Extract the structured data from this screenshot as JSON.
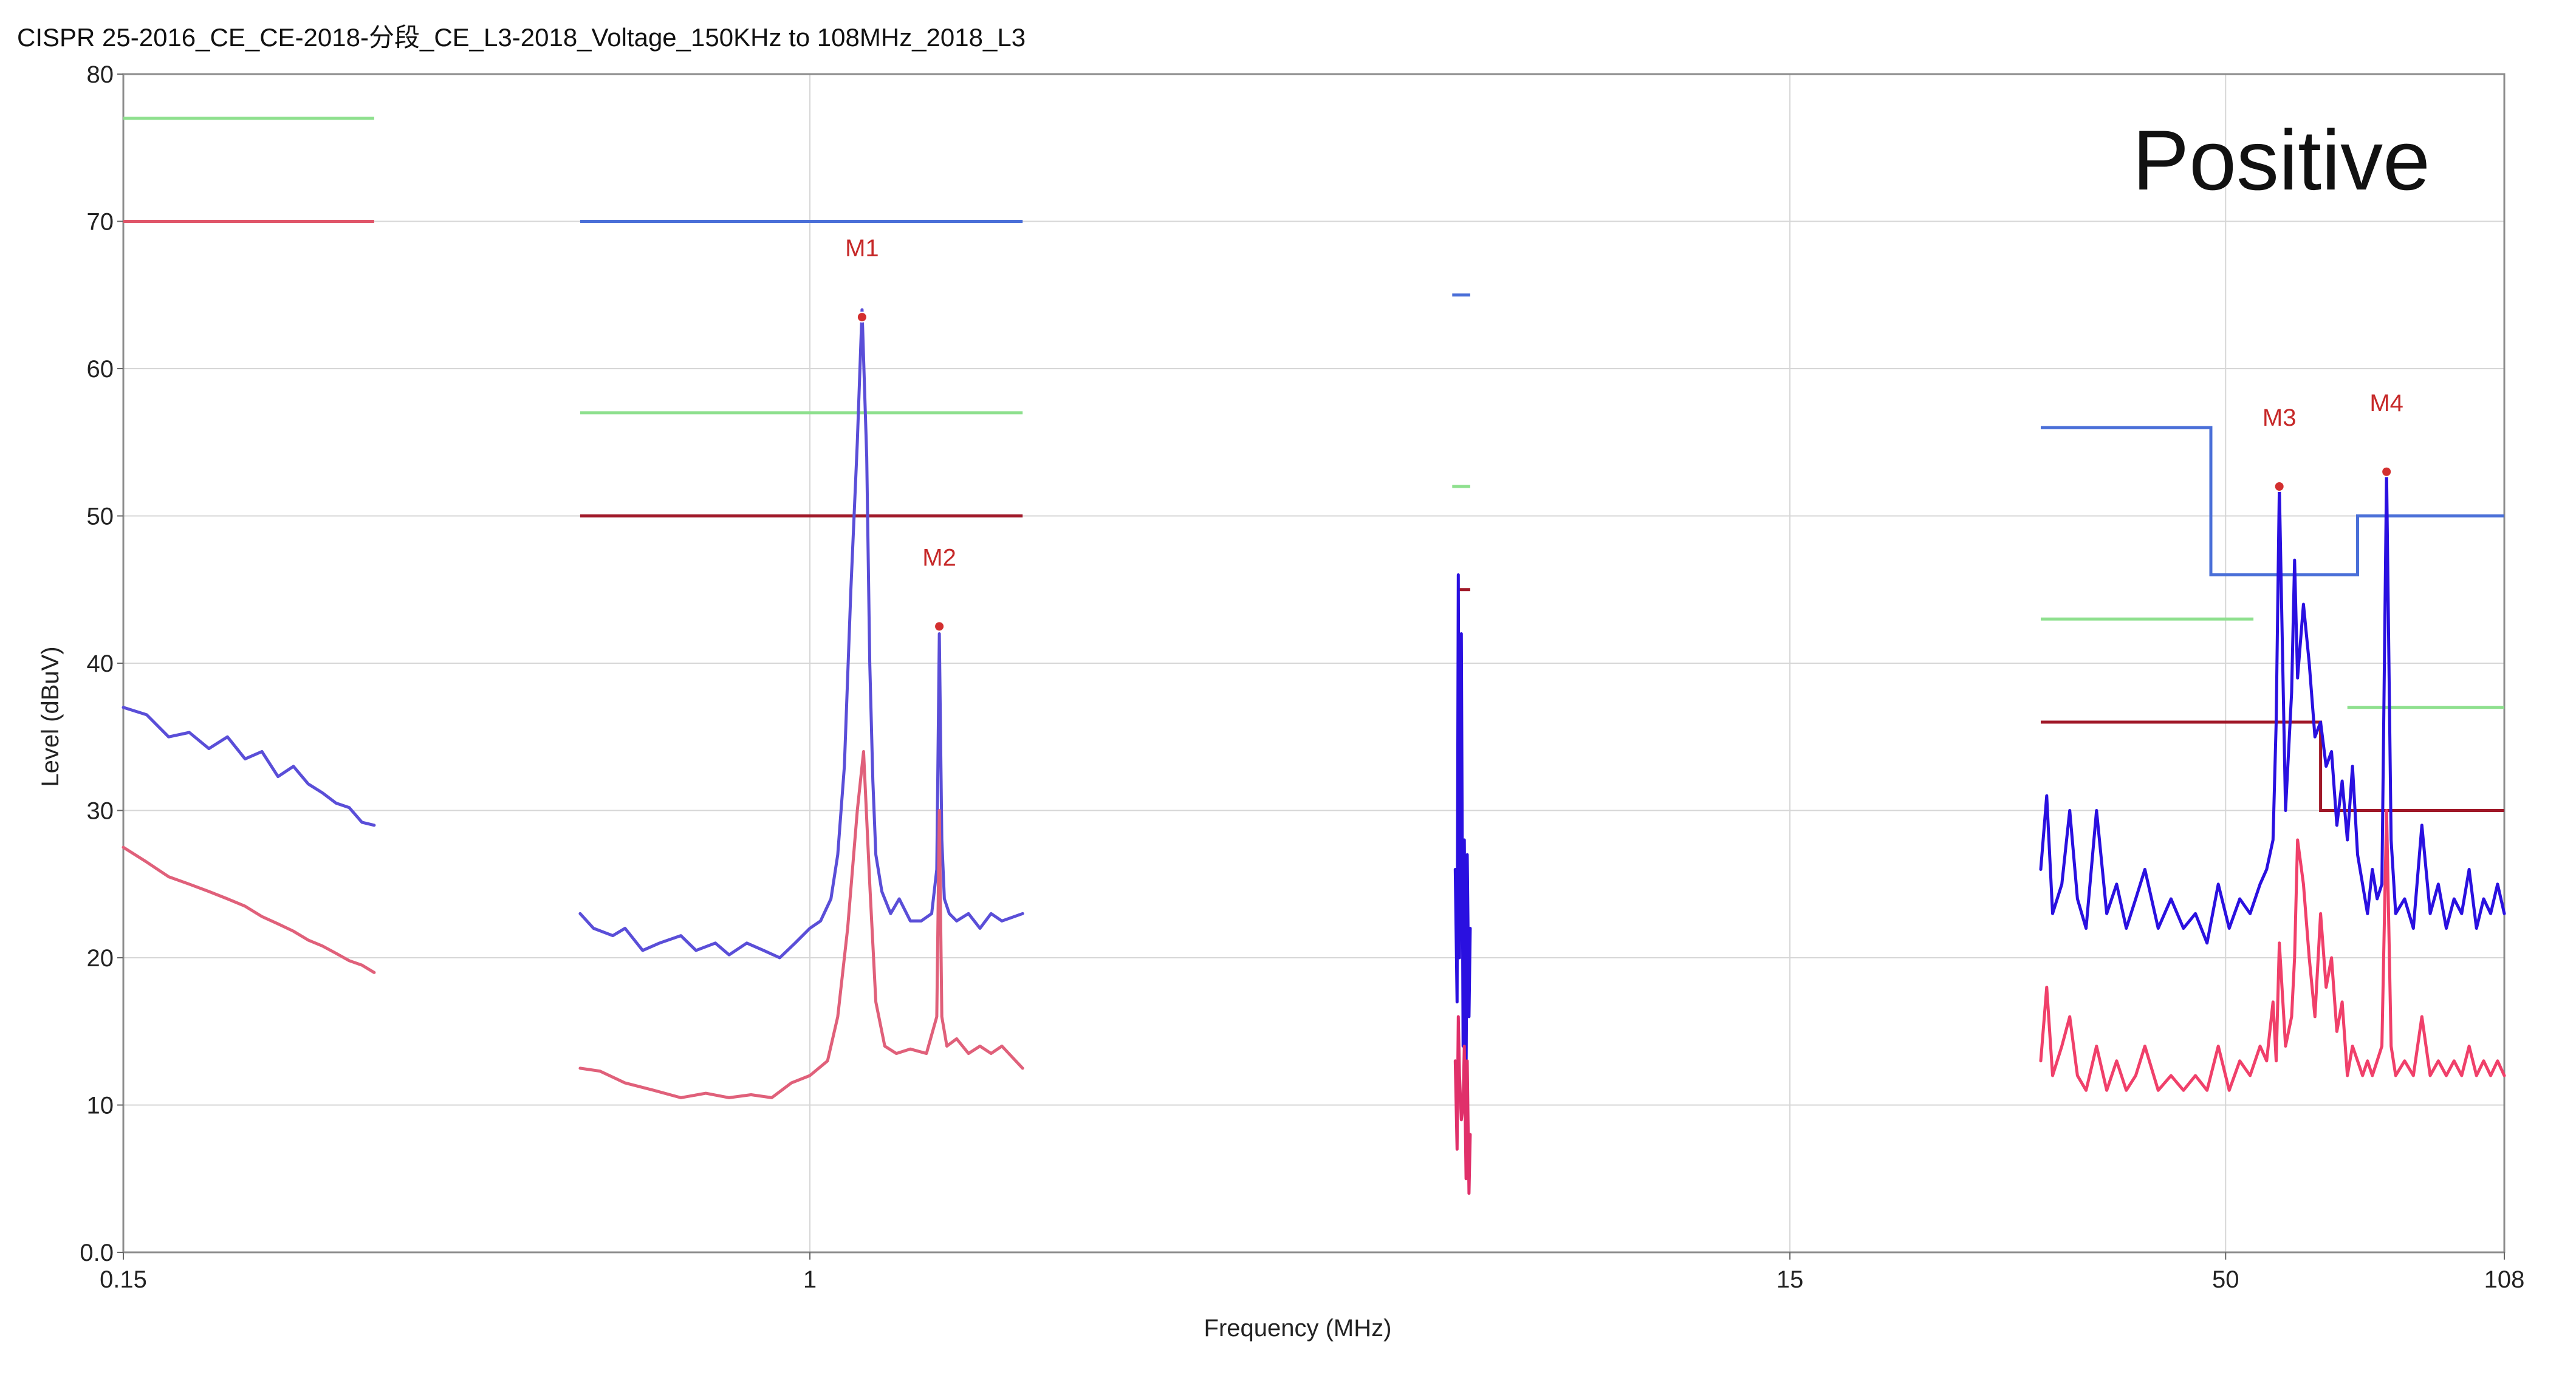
{
  "chart_data": {
    "type": "line",
    "title": "CISPR 25-2016_CE_CE-2018-分段_CE_L3-2018_Voltage_150KHz to 108MHz_2018_L3",
    "xlabel": "Frequency (MHz)",
    "ylabel": "Level (dBuV)",
    "annotation": "Positive",
    "x_scale": "log",
    "xlim": [
      0.15,
      108
    ],
    "ylim": [
      0,
      80
    ],
    "grid": true,
    "x_ticks": [
      {
        "value": 0.15,
        "label": "0.15"
      },
      {
        "value": 1,
        "label": "1"
      },
      {
        "value": 15,
        "label": "15"
      },
      {
        "value": 50,
        "label": "50"
      },
      {
        "value": 108,
        "label": "108"
      }
    ],
    "y_ticks": [
      {
        "value": 0,
        "label": "0.0"
      },
      {
        "value": 10,
        "label": "10"
      },
      {
        "value": 20,
        "label": "20"
      },
      {
        "value": 30,
        "label": "30"
      },
      {
        "value": 40,
        "label": "40"
      },
      {
        "value": 50,
        "label": "50"
      },
      {
        "value": 60,
        "label": "60"
      },
      {
        "value": 70,
        "label": "70"
      },
      {
        "value": 80,
        "label": "80"
      }
    ],
    "limit_lines": [
      {
        "color": "#4a6fd8",
        "x": [
          0.53,
          1.8
        ],
        "y": [
          70,
          70
        ]
      },
      {
        "color": "#4a6fd8",
        "x": [
          5.9,
          6.2
        ],
        "y": [
          65,
          65
        ]
      },
      {
        "color": "#4a6fd8",
        "x": [
          30,
          48,
          48,
          72,
          72,
          108
        ],
        "y": [
          56,
          56,
          46,
          46,
          50,
          50
        ]
      },
      {
        "color": "#8ee08e",
        "x": [
          0.15,
          0.3
        ],
        "y": [
          77,
          77
        ]
      },
      {
        "color": "#8ee08e",
        "x": [
          0.53,
          1.8
        ],
        "y": [
          57,
          57
        ]
      },
      {
        "color": "#8ee08e",
        "x": [
          5.9,
          6.2
        ],
        "y": [
          52,
          52
        ]
      },
      {
        "color": "#8ee08e",
        "x": [
          30,
          54
        ],
        "y": [
          43,
          43
        ]
      },
      {
        "color": "#8ee08e",
        "x": [
          70,
          108
        ],
        "y": [
          37,
          37
        ]
      },
      {
        "color": "#e05569",
        "x": [
          0.15,
          0.3
        ],
        "y": [
          70,
          70
        ]
      },
      {
        "color": "#a01828",
        "x": [
          0.53,
          1.8
        ],
        "y": [
          50,
          50
        ]
      },
      {
        "color": "#a01828",
        "x": [
          6.0,
          6.2
        ],
        "y": [
          45,
          45
        ]
      },
      {
        "color": "#a01828",
        "x": [
          30,
          65,
          65,
          108
        ],
        "y": [
          36,
          36,
          30,
          30
        ]
      }
    ],
    "series": [
      {
        "color": "#5a4ed8",
        "x": [
          0.15,
          0.16,
          0.17,
          0.18,
          0.19,
          0.2,
          0.21,
          0.22,
          0.23,
          0.24,
          0.25,
          0.26,
          0.27,
          0.28,
          0.29,
          0.3
        ],
        "y": [
          37,
          36.5,
          35,
          35.3,
          34.2,
          35,
          33.5,
          34,
          32.3,
          33,
          31.8,
          31.2,
          30.5,
          30.2,
          29.2,
          29
        ]
      },
      {
        "color": "#5a4ed8",
        "x": [
          0.53,
          0.55,
          0.58,
          0.6,
          0.63,
          0.66,
          0.7,
          0.73,
          0.77,
          0.8,
          0.84,
          0.88,
          0.92,
          0.96,
          1.0,
          1.03,
          1.06,
          1.08,
          1.1,
          1.12,
          1.14,
          1.155,
          1.17,
          1.18,
          1.19,
          1.2,
          1.22,
          1.25,
          1.28,
          1.32,
          1.36,
          1.4,
          1.42,
          1.43,
          1.44,
          1.45,
          1.47,
          1.5,
          1.55,
          1.6,
          1.65,
          1.7,
          1.8
        ],
        "y": [
          23,
          22,
          21.5,
          22,
          20.5,
          21,
          21.5,
          20.5,
          21,
          20.2,
          21,
          20.5,
          20,
          21,
          22,
          22.5,
          24,
          27,
          33,
          45,
          55,
          64,
          54,
          40,
          32,
          27,
          24.5,
          23,
          24,
          22.5,
          22.5,
          23,
          26,
          42,
          28,
          24,
          23,
          22.5,
          23,
          22,
          23,
          22.5,
          23
        ]
      },
      {
        "color": "#e0607a",
        "x": [
          0.15,
          0.16,
          0.17,
          0.18,
          0.19,
          0.2,
          0.21,
          0.22,
          0.23,
          0.24,
          0.25,
          0.26,
          0.27,
          0.28,
          0.29,
          0.3
        ],
        "y": [
          27.5,
          26.5,
          25.5,
          25,
          24.5,
          24,
          23.5,
          22.8,
          22.3,
          21.8,
          21.2,
          20.8,
          20.3,
          19.8,
          19.5,
          19
        ]
      },
      {
        "color": "#e0607a",
        "x": [
          0.53,
          0.56,
          0.6,
          0.65,
          0.7,
          0.75,
          0.8,
          0.85,
          0.9,
          0.95,
          1.0,
          1.05,
          1.08,
          1.11,
          1.14,
          1.16,
          1.18,
          1.2,
          1.23,
          1.27,
          1.32,
          1.38,
          1.42,
          1.43,
          1.44,
          1.46,
          1.5,
          1.55,
          1.6,
          1.65,
          1.7,
          1.8
        ],
        "y": [
          12.5,
          12.3,
          11.5,
          11,
          10.5,
          10.8,
          10.5,
          10.7,
          10.5,
          11.5,
          12,
          13,
          16,
          22,
          30,
          34,
          25,
          17,
          14,
          13.5,
          13.8,
          13.5,
          16,
          30,
          16,
          14,
          14.5,
          13.5,
          14,
          13.5,
          14,
          12.5
        ]
      },
      {
        "color": "#2a10e0",
        "x": [
          5.95,
          5.98,
          6.0,
          6.02,
          6.05,
          6.08,
          6.1,
          6.13,
          6.15,
          6.18,
          6.2
        ],
        "y": [
          26,
          17,
          46,
          20,
          42,
          14,
          28,
          12,
          27,
          16,
          22
        ]
      },
      {
        "color": "#e0306a",
        "x": [
          5.95,
          5.98,
          6.0,
          6.02,
          6.05,
          6.08,
          6.1,
          6.13,
          6.15,
          6.18,
          6.2
        ],
        "y": [
          13,
          7,
          16,
          12,
          9,
          10,
          14,
          5,
          13,
          4,
          8
        ]
      },
      {
        "color": "#2a10e0",
        "x": [
          30,
          30.5,
          31,
          31.8,
          32.5,
          33.2,
          34,
          35,
          36,
          37,
          38,
          39,
          40,
          41.5,
          43,
          44.5,
          46,
          47.5,
          49,
          50.5,
          52,
          53.5,
          55,
          56,
          57,
          57.5,
          58,
          59,
          60,
          60.5,
          61,
          62,
          63,
          64,
          65,
          66,
          67,
          68,
          69,
          70,
          71,
          72,
          73,
          74,
          75,
          76,
          77,
          78,
          79,
          80,
          82,
          84,
          86,
          88,
          90,
          92,
          94,
          96,
          98,
          100,
          102,
          104,
          106,
          108
        ],
        "y": [
          26,
          31,
          23,
          25,
          30,
          24,
          22,
          30,
          23,
          25,
          22,
          24,
          26,
          22,
          24,
          22,
          23,
          21,
          25,
          22,
          24,
          23,
          25,
          26,
          28,
          36,
          52,
          30,
          38,
          47,
          39,
          44,
          40,
          35,
          36,
          33,
          34,
          29,
          32,
          28,
          33,
          27,
          25,
          23,
          26,
          24,
          25,
          53,
          28,
          23,
          24,
          22,
          29,
          23,
          25,
          22,
          24,
          23,
          26,
          22,
          24,
          23,
          25,
          23
        ]
      },
      {
        "color": "#f0406a",
        "x": [
          30,
          30.5,
          31,
          31.8,
          32.5,
          33.2,
          34,
          35,
          36,
          37,
          38,
          39,
          40,
          41.5,
          43,
          44.5,
          46,
          47.5,
          49,
          50.5,
          52,
          53.5,
          55,
          56,
          57,
          57.5,
          58,
          59,
          60,
          60.5,
          61,
          62,
          63,
          64,
          65,
          66,
          67,
          68,
          69,
          70,
          71,
          72,
          73,
          74,
          75,
          76,
          77,
          78,
          79,
          80,
          82,
          84,
          86,
          88,
          90,
          92,
          94,
          96,
          98,
          100,
          102,
          104,
          106,
          108
        ],
        "y": [
          13,
          18,
          12,
          14,
          16,
          12,
          11,
          14,
          11,
          13,
          11,
          12,
          14,
          11,
          12,
          11,
          12,
          11,
          14,
          11,
          13,
          12,
          14,
          13,
          17,
          13,
          21,
          14,
          16,
          20,
          28,
          25,
          20,
          16,
          23,
          18,
          20,
          15,
          17,
          12,
          14,
          13,
          12,
          13,
          12,
          13,
          14,
          30,
          14,
          12,
          13,
          12,
          16,
          12,
          13,
          12,
          13,
          12,
          14,
          12,
          13,
          12,
          13,
          12
        ]
      }
    ],
    "markers": [
      {
        "label": "M1",
        "x": 1.155,
        "y": 63.5
      },
      {
        "label": "M2",
        "x": 1.43,
        "y": 42.5
      },
      {
        "label": "M3",
        "x": 58,
        "y": 52
      },
      {
        "label": "M4",
        "x": 78,
        "y": 53
      }
    ]
  }
}
